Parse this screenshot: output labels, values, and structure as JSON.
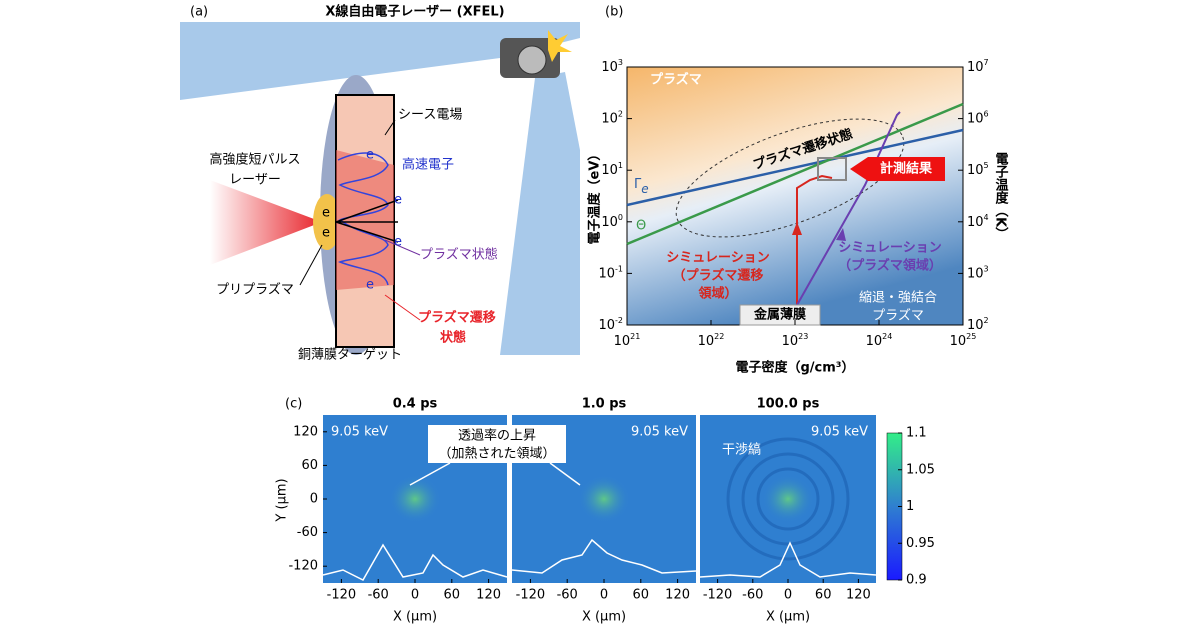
{
  "panel_a": {
    "label": "(a)",
    "xfel": "X線自由電子レーザー (XFEL)",
    "sheath": "シース電場",
    "fast_electron": "高速電子",
    "laser": [
      "高強度短パルス",
      "レーザー"
    ],
    "plasma_state": "プラズマ状態",
    "preplasma": "プリプラズマ",
    "transition": [
      "プラズマ遷移",
      "状態"
    ],
    "target": "銅薄膜ターゲット",
    "electron": "e"
  },
  "panel_b": {
    "label": "(b)",
    "ylabel_left": "電子温度（eV）",
    "ylabel_right": "電子温度（K）",
    "xlabel": "電子密度（g/cm³）",
    "xticks": [
      {
        "base": "10",
        "exp": "21"
      },
      {
        "base": "10",
        "exp": "22"
      },
      {
        "base": "10",
        "exp": "23"
      },
      {
        "base": "10",
        "exp": "24"
      },
      {
        "base": "10",
        "exp": "25"
      }
    ],
    "yticks_left": [
      {
        "base": "10",
        "exp": "-2"
      },
      {
        "base": "10",
        "exp": "-1"
      },
      {
        "base": "10",
        "exp": "0"
      },
      {
        "base": "10",
        "exp": "1"
      },
      {
        "base": "10",
        "exp": "2"
      },
      {
        "base": "10",
        "exp": "3"
      }
    ],
    "yticks_right": [
      {
        "base": "10",
        "exp": "2"
      },
      {
        "base": "10",
        "exp": "3"
      },
      {
        "base": "10",
        "exp": "4"
      },
      {
        "base": "10",
        "exp": "5"
      },
      {
        "base": "10",
        "exp": "6"
      },
      {
        "base": "10",
        "exp": "7"
      }
    ],
    "plasma": "プラズマ",
    "transition_region": "プラズマ遷移状態",
    "measurement": "計測結果",
    "sim_transition": [
      "シミュレーション",
      "（プラズマ遷移",
      "領域）"
    ],
    "sim_plasma": [
      "シミュレーション",
      "（プラズマ領域）"
    ],
    "degenerate": [
      "縮退・強結合",
      "プラズマ"
    ],
    "metal": "金属薄膜",
    "gamma": "Γ",
    "gamma_sub": "e",
    "theta": "Θ"
  },
  "panel_c": {
    "label": "(c)",
    "titles": [
      "0.4 ps",
      "1.0 ps",
      "100.0 ps"
    ],
    "energy": "9.05 keV",
    "annotation": [
      "透過率の上昇",
      "（加熱された領域）"
    ],
    "fringe": "干渉縞",
    "ylabel": "Y (μm)",
    "xlabel": "X (μm)",
    "xlim": [
      -150,
      150
    ],
    "ylim": [
      -150,
      150
    ],
    "xticks": [
      -120,
      -60,
      0,
      60,
      120
    ],
    "yticks": [
      120,
      60,
      0,
      -60,
      -120
    ],
    "clim": [
      0.9,
      1.1
    ],
    "cticks": [
      1.1,
      1.05,
      1,
      0.95,
      0.9
    ]
  }
}
